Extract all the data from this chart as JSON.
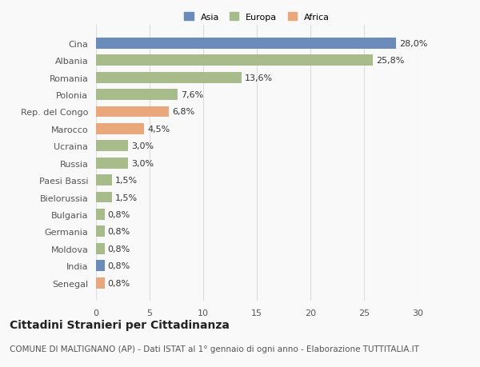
{
  "categories": [
    "Senegal",
    "India",
    "Moldova",
    "Germania",
    "Bulgaria",
    "Bielorussia",
    "Paesi Bassi",
    "Russia",
    "Ucraina",
    "Marocco",
    "Rep. del Congo",
    "Polonia",
    "Romania",
    "Albania",
    "Cina"
  ],
  "values": [
    0.8,
    0.8,
    0.8,
    0.8,
    0.8,
    1.5,
    1.5,
    3.0,
    3.0,
    4.5,
    6.8,
    7.6,
    13.6,
    25.8,
    28.0
  ],
  "labels": [
    "0,8%",
    "0,8%",
    "0,8%",
    "0,8%",
    "0,8%",
    "1,5%",
    "1,5%",
    "3,0%",
    "3,0%",
    "4,5%",
    "6,8%",
    "7,6%",
    "13,6%",
    "25,8%",
    "28,0%"
  ],
  "colors": [
    "#e8a87c",
    "#6b8cba",
    "#a8bb8a",
    "#a8bb8a",
    "#a8bb8a",
    "#a8bb8a",
    "#a8bb8a",
    "#a8bb8a",
    "#a8bb8a",
    "#e8a87c",
    "#e8a87c",
    "#a8bb8a",
    "#a8bb8a",
    "#a8bb8a",
    "#6b8cba"
  ],
  "legend_labels": [
    "Asia",
    "Europa",
    "Africa"
  ],
  "legend_colors": [
    "#6b8cba",
    "#a8bb8a",
    "#e8a87c"
  ],
  "title": "Cittadini Stranieri per Cittadinanza",
  "subtitle": "COMUNE DI MALTIGNANO (AP) - Dati ISTAT al 1° gennaio di ogni anno - Elaborazione TUTTITALIA.IT",
  "xlim": [
    0,
    30
  ],
  "xticks": [
    0,
    5,
    10,
    15,
    20,
    25,
    30
  ],
  "background_color": "#f9f9f9",
  "grid_color": "#dddddd",
  "bar_height": 0.65,
  "title_fontsize": 10,
  "subtitle_fontsize": 7.5,
  "tick_fontsize": 8,
  "value_fontsize": 8
}
